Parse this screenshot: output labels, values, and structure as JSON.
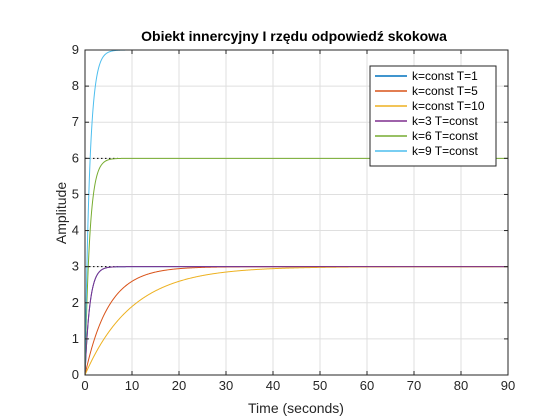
{
  "chart_data": {
    "type": "line",
    "title": "Obiekt innercyjny I rzędu odpowiedź skokowa",
    "xlabel": "Time (seconds)",
    "ylabel": "Amplitude",
    "xlim": [
      0,
      90
    ],
    "ylim": [
      0,
      9
    ],
    "xticks": [
      0,
      10,
      20,
      30,
      40,
      50,
      60,
      70,
      80,
      90
    ],
    "yticks": [
      0,
      1,
      2,
      3,
      4,
      5,
      6,
      7,
      8,
      9
    ],
    "grid": true,
    "legend_position": "top-right",
    "series": [
      {
        "name": "k=const T=1",
        "color": "#0072bd",
        "gain": 3,
        "time_constant": 1
      },
      {
        "name": "k=const T=5",
        "color": "#d95319",
        "gain": 3,
        "time_constant": 5
      },
      {
        "name": "k=const T=10",
        "color": "#edb120",
        "gain": 3,
        "time_constant": 10
      },
      {
        "name": "k=3 T=const",
        "color": "#7e2f8e",
        "gain": 3,
        "time_constant": 1
      },
      {
        "name": "k=6 T=const",
        "color": "#77ac30",
        "gain": 6,
        "time_constant": 1
      },
      {
        "name": "k=9 T=const",
        "color": "#4dbeee",
        "gain": 9,
        "time_constant": 1
      }
    ]
  }
}
